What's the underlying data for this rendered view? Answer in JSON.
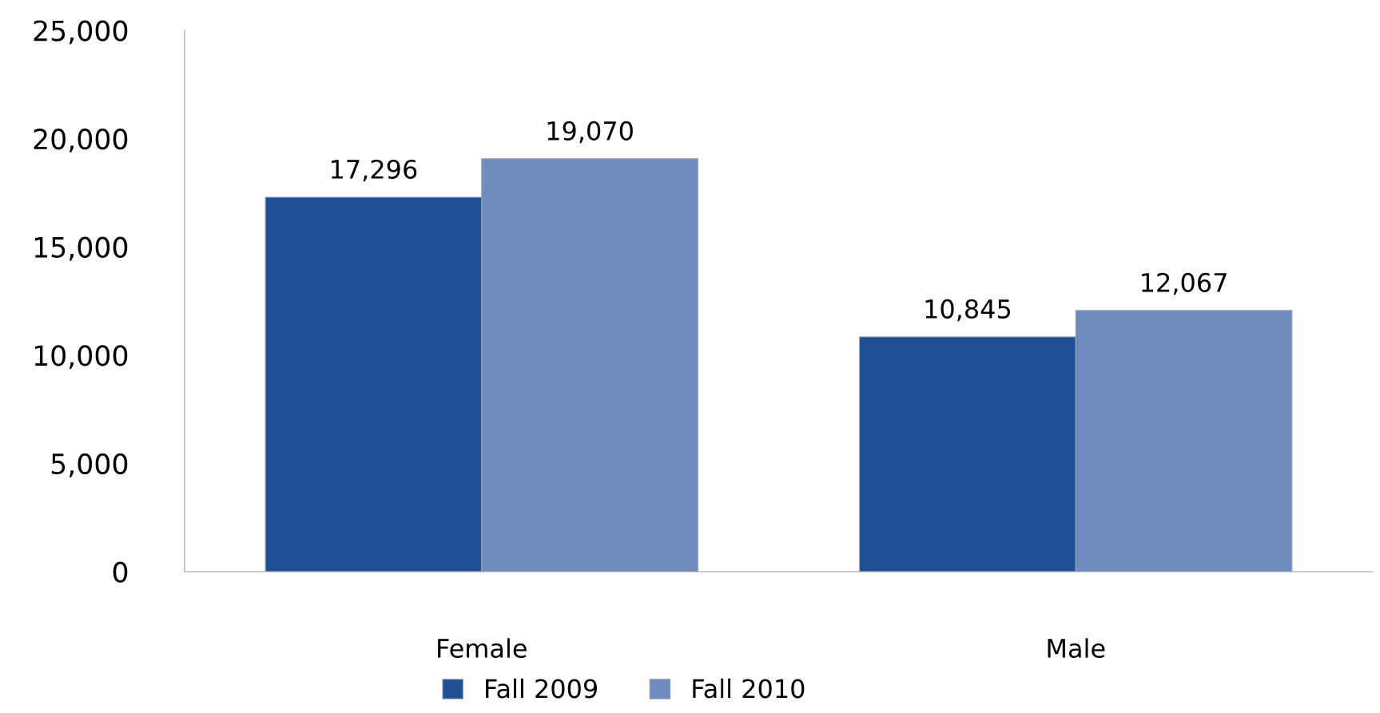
{
  "chart_data": {
    "type": "bar",
    "categories": [
      "Female",
      "Male"
    ],
    "series": [
      {
        "name": "Fall 2009",
        "color": "#1f4f94",
        "values": [
          17296,
          10845
        ],
        "value_labels": [
          "17,296",
          "10,845"
        ]
      },
      {
        "name": "Fall 2010",
        "color": "#6f8bbd",
        "values": [
          19070,
          12067
        ],
        "value_labels": [
          "19,070",
          "12,067"
        ]
      }
    ],
    "ylim": [
      0,
      25000
    ],
    "yticks": [
      0,
      {
        "value": 5000,
        "label": "5,000"
      },
      {
        "value": 10000,
        "label": "10,000"
      },
      {
        "value": 15000,
        "label": "15,000"
      },
      {
        "value": 20000,
        "label": "20,000"
      },
      {
        "value": 25000,
        "label": "25,000"
      }
    ],
    "grid": false,
    "legend": "bottom"
  }
}
